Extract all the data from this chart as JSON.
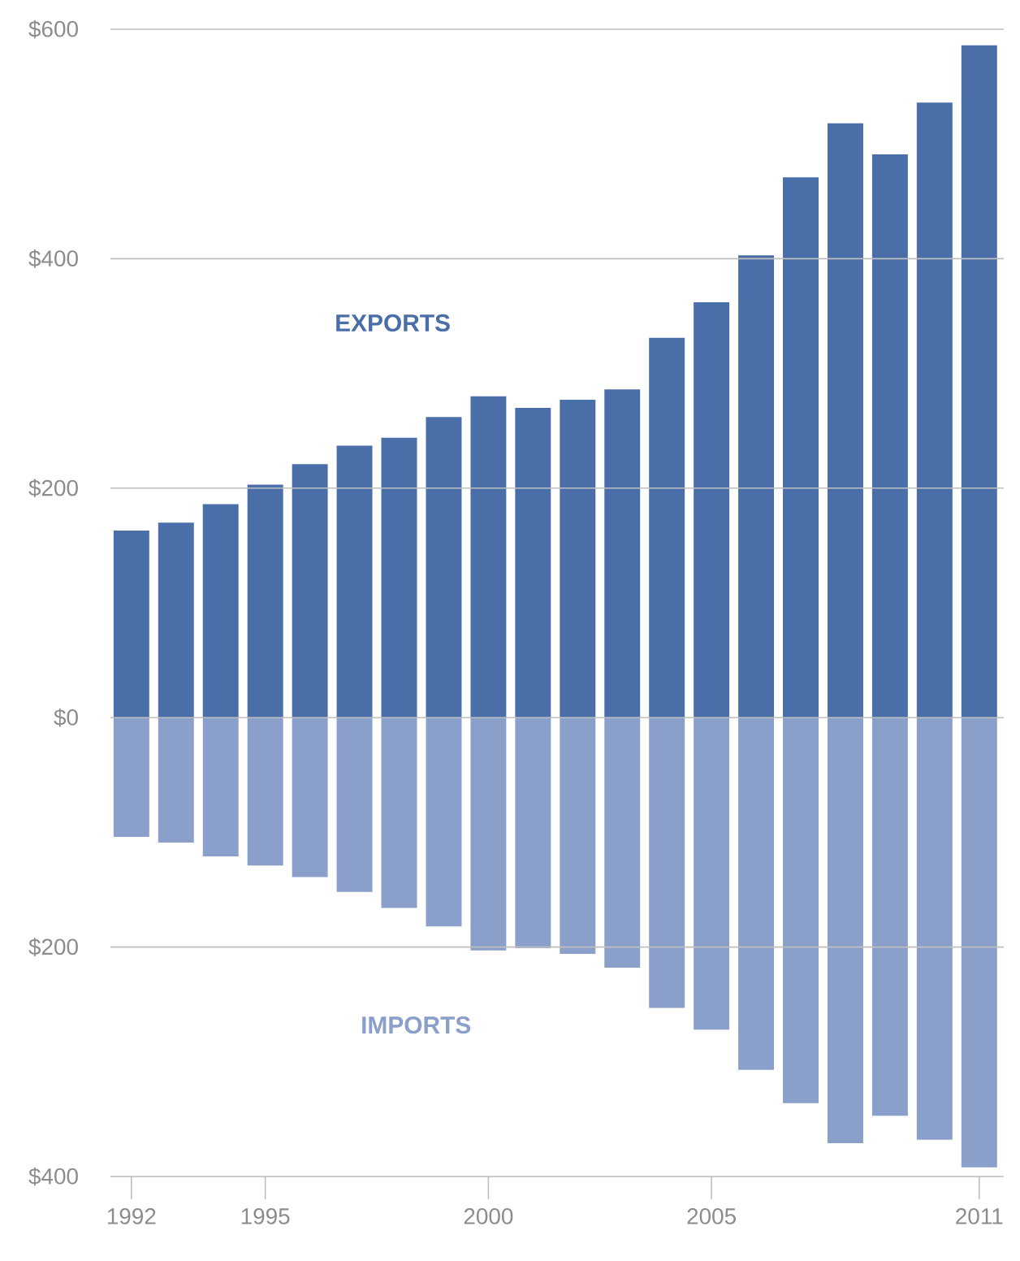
{
  "chart_data": {
    "type": "bar",
    "x": [
      1992,
      1993,
      1994,
      1995,
      1996,
      1997,
      1998,
      1999,
      2000,
      2001,
      2002,
      2003,
      2004,
      2005,
      2006,
      2007,
      2008,
      2009,
      2010,
      2011
    ],
    "series": [
      {
        "name": "EXPORTS",
        "color": "#4a6ea8",
        "values": [
          163,
          170,
          186,
          203,
          221,
          237,
          244,
          262,
          280,
          270,
          277,
          286,
          331,
          362,
          403,
          471,
          518,
          491,
          536,
          586
        ]
      },
      {
        "name": "IMPORTS",
        "color": "#8a9fc9",
        "values": [
          -104,
          -109,
          -121,
          -129,
          -139,
          -152,
          -166,
          -182,
          -203,
          -201,
          -206,
          -218,
          -253,
          -272,
          -307,
          -336,
          -371,
          -347,
          -368,
          -392
        ]
      }
    ],
    "xlim": [
      1991.53,
      2011.55
    ],
    "xticks": [
      1992,
      1995,
      2000,
      2005,
      2011
    ],
    "ylim": [
      -400,
      600
    ],
    "yticks": [
      {
        "value": -400,
        "label": "$400"
      },
      {
        "value": -200,
        "label": "$200"
      },
      {
        "value": 0,
        "label": "$0"
      },
      {
        "value": 200,
        "label": "$200"
      },
      {
        "value": 400,
        "label": "$400"
      },
      {
        "value": 600,
        "label": "$600"
      }
    ],
    "grid": "y",
    "stacked": true
  }
}
